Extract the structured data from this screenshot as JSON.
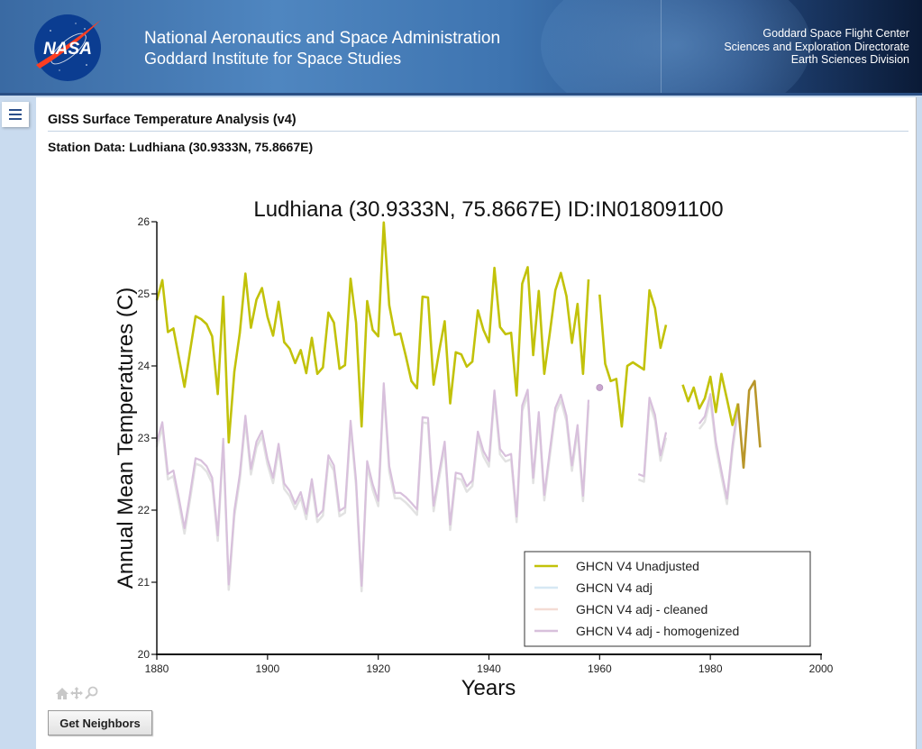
{
  "header": {
    "logo_text": "NASA",
    "agency_line1": "National Aeronautics and Space Administration",
    "agency_line2": "Goddard Institute for Space Studies",
    "center_lines": [
      "Goddard Space Flight Center",
      "Sciences and Exploration Directorate",
      "Earth Sciences Division"
    ]
  },
  "menu": {
    "icon": "hamburger-menu-icon"
  },
  "page": {
    "title": "GISS Surface Temperature Analysis (v4)",
    "station_title": "Station Data: Ludhiana (30.9333N, 75.8667E)"
  },
  "toolbar": {
    "icons": [
      "home-icon",
      "pan-icon",
      "zoom-icon"
    ]
  },
  "buttons": {
    "get_neighbors": "Get Neighbors"
  },
  "colors": {
    "unadjusted": "#c2c20a",
    "adj": "#d6e8f4",
    "adj_cleaned": "#f4dcd4",
    "adj_homogenized": "#d8c0dc",
    "homogenized_shadow": "#e2e2e2",
    "overlap": "#b8962a"
  },
  "chart_data": {
    "type": "line",
    "title": "Ludhiana (30.9333N, 75.8667E) ID:IN018091100",
    "xlabel": "Years",
    "ylabel": "Annual Mean Temperatures (C)",
    "xlim": [
      1880,
      2000
    ],
    "ylim": [
      20,
      26
    ],
    "xticks": [
      1880,
      1900,
      1920,
      1940,
      1960,
      1980,
      2000
    ],
    "yticks": [
      20,
      21,
      22,
      23,
      24,
      25,
      26
    ],
    "grid": false,
    "legend_position": "bottom-right",
    "series": [
      {
        "name": "GHCN V4 Unadjusted",
        "color_key": "unadjusted",
        "segments": [
          {
            "x": [
              1880,
              1881,
              1882,
              1883,
              1884,
              1885,
              1886,
              1887,
              1888,
              1889,
              1890,
              1891,
              1892,
              1893,
              1894,
              1895,
              1896,
              1897,
              1898,
              1899,
              1900,
              1901,
              1902,
              1903,
              1904,
              1905,
              1906,
              1907,
              1908,
              1909,
              1910,
              1911,
              1912,
              1913,
              1914,
              1915,
              1916,
              1917,
              1918,
              1919,
              1920,
              1921,
              1922,
              1923,
              1924,
              1925,
              1926,
              1927,
              1928,
              1929,
              1930,
              1931,
              1932,
              1933,
              1934,
              1935,
              1936,
              1937,
              1938,
              1939,
              1940,
              1941,
              1942,
              1943,
              1944,
              1945,
              1946,
              1947,
              1948,
              1949,
              1950,
              1951,
              1952,
              1953,
              1954,
              1955,
              1956,
              1957,
              1958
            ],
            "y": [
              24.91,
              25.19,
              24.47,
              24.52,
              24.11,
              23.71,
              24.2,
              24.69,
              24.65,
              24.58,
              24.41,
              23.61,
              24.96,
              22.94,
              23.92,
              24.46,
              25.28,
              24.53,
              24.92,
              25.08,
              24.68,
              24.42,
              24.89,
              24.33,
              24.24,
              24.04,
              24.22,
              23.9,
              24.39,
              23.89,
              23.98,
              24.74,
              24.6,
              23.96,
              24.01,
              25.21,
              24.6,
              23.16,
              24.9,
              24.5,
              24.41,
              25.99,
              24.84,
              24.43,
              24.45,
              24.13,
              23.79,
              23.69,
              24.96,
              24.95,
              23.74,
              24.2,
              24.62,
              23.48,
              24.19,
              24.16,
              23.99,
              24.06,
              24.77,
              24.5,
              24.33,
              25.36,
              24.54,
              24.44,
              24.46,
              23.59,
              25.14,
              25.37,
              24.15,
              25.04,
              23.89,
              24.46,
              25.05,
              25.29,
              24.97,
              24.32,
              24.86,
              23.89,
              25.2
            ]
          },
          {
            "x": [
              1960,
              1961,
              1962,
              1963,
              1964,
              1965,
              1966,
              1967,
              1968,
              1969,
              1970,
              1971,
              1972
            ],
            "y": [
              24.99,
              24.03,
              23.79,
              23.82,
              23.16,
              24.0,
              24.05,
              24.0,
              23.95,
              25.05,
              24.8,
              24.25,
              24.57
            ]
          },
          {
            "x": [
              1975,
              1976,
              1977,
              1978,
              1979,
              1980,
              1981,
              1982,
              1983,
              1984,
              1985
            ],
            "y": [
              23.74,
              23.51,
              23.7,
              23.41,
              23.55,
              23.85,
              23.36,
              23.89,
              23.54,
              23.18,
              23.48
            ]
          },
          {
            "x": [
              1985,
              1986,
              1987,
              1988,
              1989
            ],
            "y": [
              23.48,
              22.59,
              23.66,
              23.79,
              22.87
            ],
            "color_key": "overlap"
          }
        ]
      },
      {
        "name": "GHCN V4 adj",
        "color_key": "adj",
        "segments": []
      },
      {
        "name": "GHCN V4 adj - cleaned",
        "color_key": "adj_cleaned",
        "segments": []
      },
      {
        "name": "GHCN V4 adj - homogenized",
        "color_key": "adj_homogenized",
        "segments": [
          {
            "x": [
              1880,
              1881,
              1882,
              1883,
              1884,
              1885,
              1886,
              1887,
              1888,
              1889,
              1890,
              1891,
              1892,
              1893,
              1894,
              1895,
              1896,
              1897,
              1898,
              1899,
              1900,
              1901,
              1902,
              1903,
              1904,
              1905,
              1906,
              1907,
              1908,
              1909,
              1910,
              1911,
              1912,
              1913,
              1914,
              1915,
              1916,
              1917,
              1918,
              1919,
              1920,
              1921,
              1922,
              1923,
              1924,
              1925,
              1926,
              1927,
              1928,
              1929,
              1930,
              1931,
              1932,
              1933,
              1934,
              1935,
              1936,
              1937,
              1938,
              1939,
              1940,
              1941,
              1942,
              1943,
              1944,
              1945,
              1946,
              1947,
              1948,
              1949,
              1950,
              1951,
              1952,
              1953,
              1954,
              1955,
              1956,
              1957,
              1958
            ],
            "y": [
              22.95,
              23.22,
              22.5,
              22.55,
              22.16,
              21.75,
              22.22,
              22.72,
              22.69,
              22.61,
              22.45,
              21.65,
              22.99,
              20.97,
              21.99,
              22.5,
              23.31,
              22.57,
              22.95,
              23.1,
              22.71,
              22.45,
              22.92,
              22.37,
              22.27,
              22.09,
              22.25,
              21.95,
              22.43,
              21.91,
              22.0,
              22.76,
              22.62,
              21.99,
              22.04,
              23.24,
              22.41,
              20.95,
              22.68,
              22.36,
              22.13,
              23.76,
              22.61,
              22.24,
              22.24,
              22.18,
              22.1,
              22.01,
              23.29,
              23.28,
              22.06,
              22.52,
              22.95,
              21.8,
              22.52,
              22.5,
              22.33,
              22.41,
              23.09,
              22.82,
              22.68,
              23.66,
              22.85,
              22.75,
              22.78,
              21.91,
              23.45,
              23.67,
              22.45,
              23.36,
              22.21,
              22.83,
              23.42,
              23.6,
              23.31,
              22.62,
              23.18,
              22.2,
              23.53
            ]
          },
          {
            "x": [
              1960
            ],
            "y": [
              23.7
            ],
            "marker": true
          },
          {
            "x": [
              1967,
              1968,
              1969,
              1970,
              1971,
              1972
            ],
            "y": [
              22.5,
              22.47,
              23.56,
              23.32,
              22.76,
              23.08
            ]
          },
          {
            "x": [
              1978,
              1979,
              1980,
              1981,
              1982,
              1983,
              1984,
              1985
            ],
            "y": [
              23.2,
              23.3,
              23.61,
              22.95,
              22.55,
              22.16,
              22.9,
              23.46
            ]
          }
        ]
      }
    ]
  }
}
